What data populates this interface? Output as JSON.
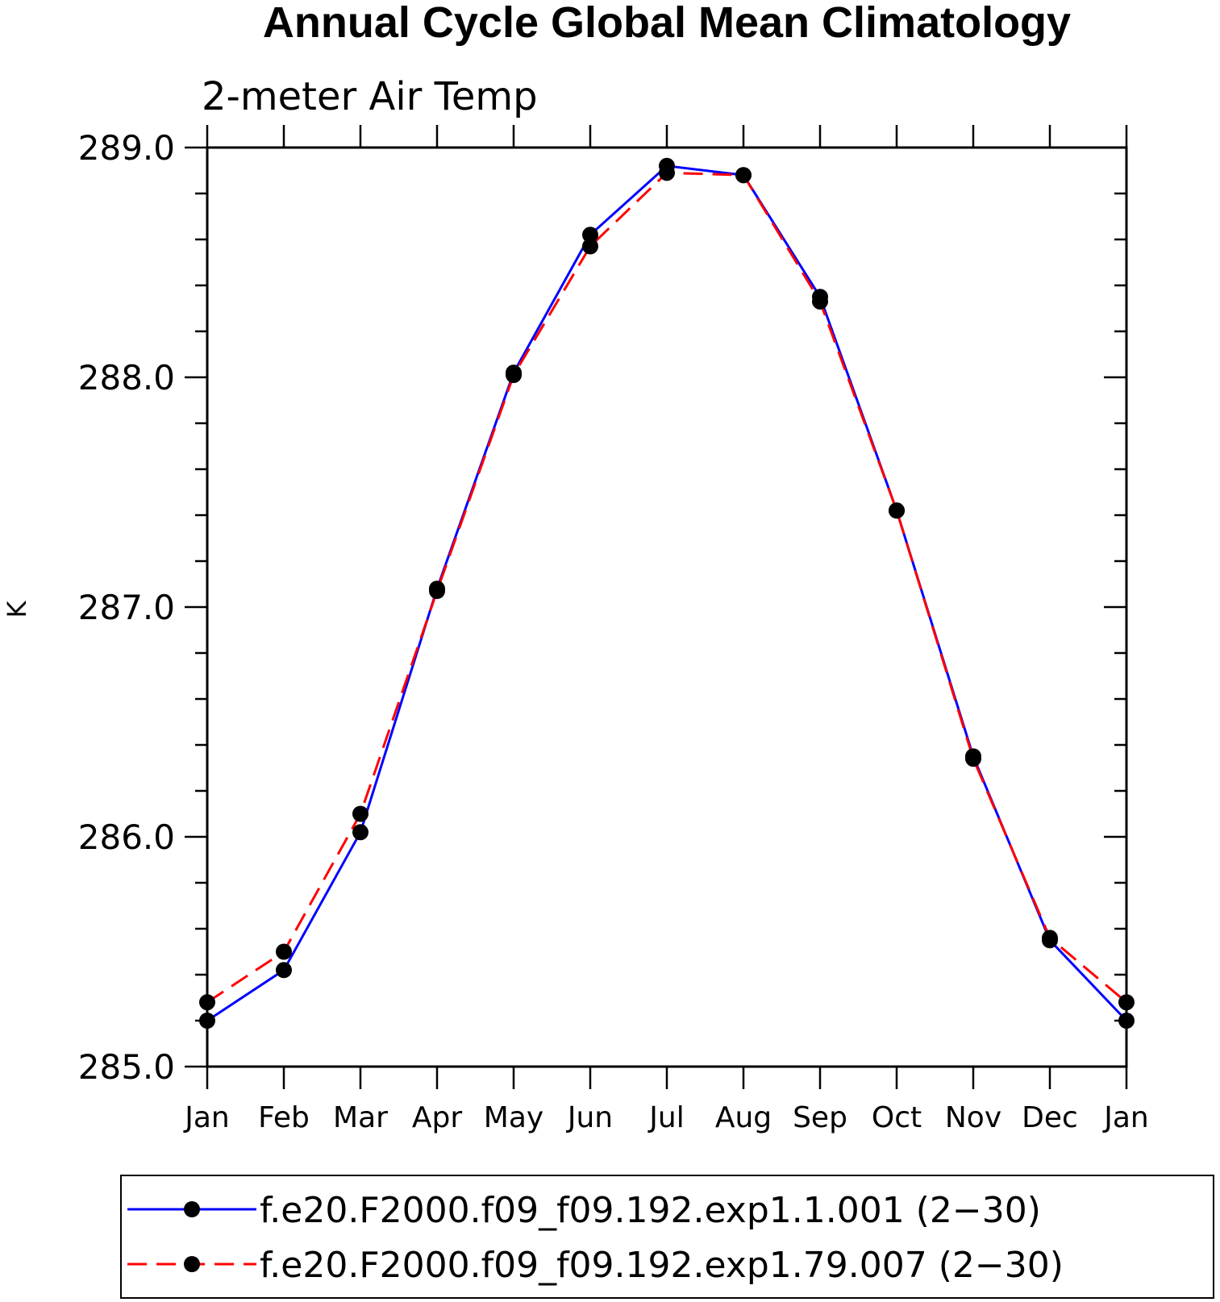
{
  "chart_data": {
    "type": "line",
    "title": "Annual Cycle Global Mean Climatology",
    "subtitle": "2-meter Air Temp",
    "ylabel": "K",
    "xlabel": "",
    "ylim": [
      285.0,
      289.0
    ],
    "y_ticks": [
      "285.0",
      "286.0",
      "287.0",
      "288.0",
      "289.0"
    ],
    "y_tick_values": [
      285.0,
      286.0,
      287.0,
      288.0,
      289.0
    ],
    "categories": [
      "Jan",
      "Feb",
      "Mar",
      "Apr",
      "May",
      "Jun",
      "Jul",
      "Aug",
      "Sep",
      "Oct",
      "Nov",
      "Dec",
      "Jan"
    ],
    "legend_position": "bottom",
    "series": [
      {
        "name": "f.e20.F2000.f09_f09.192.exp1.1.001 (2−30)",
        "color": "#0000ff",
        "dash": "solid",
        "values": [
          285.2,
          285.42,
          286.02,
          287.08,
          288.02,
          288.62,
          288.92,
          288.88,
          288.35,
          287.42,
          286.35,
          285.55,
          285.2
        ]
      },
      {
        "name": "f.e20.F2000.f09_f09.192.exp1.79.007 (2−30)",
        "color": "#ff0000",
        "dash": "dashed",
        "values": [
          285.28,
          285.5,
          286.1,
          287.07,
          288.01,
          288.57,
          288.89,
          288.88,
          288.33,
          287.42,
          286.34,
          285.56,
          285.28
        ]
      }
    ]
  }
}
